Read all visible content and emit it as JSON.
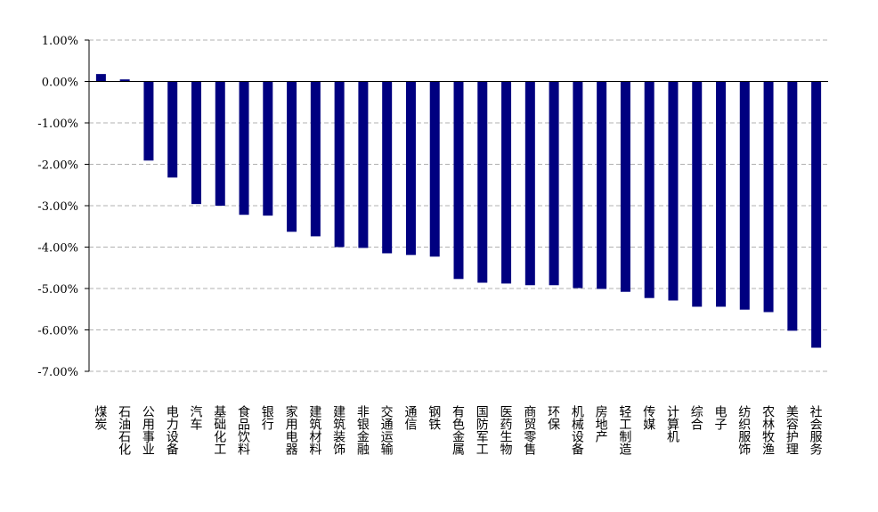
{
  "chart_data": {
    "type": "bar",
    "categories": [
      "煤炭",
      "石油石化",
      "公用事业",
      "电力设备",
      "汽车",
      "基础化工",
      "食品饮料",
      "银行",
      "家用电器",
      "建筑材料",
      "建筑装饰",
      "非银金融",
      "交通运输",
      "通信",
      "钢铁",
      "有色金属",
      "国防军工",
      "医药生物",
      "商贸零售",
      "环保",
      "机械设备",
      "房地产",
      "轻工制造",
      "传媒",
      "计算机",
      "综合",
      "电子",
      "纺织服饰",
      "农林牧渔",
      "美容护理",
      "社会服务"
    ],
    "values": [
      0.18,
      0.05,
      -1.91,
      -2.32,
      -2.96,
      -3.0,
      -3.22,
      -3.24,
      -3.63,
      -3.74,
      -4.0,
      -4.02,
      -4.15,
      -4.19,
      -4.23,
      -4.77,
      -4.86,
      -4.88,
      -4.92,
      -4.92,
      -4.99,
      -5.01,
      -5.08,
      -5.23,
      -5.29,
      -5.44,
      -5.44,
      -5.51,
      -5.57,
      -6.02,
      -6.43
    ],
    "color": "#000080",
    "ylim": [
      -7,
      1
    ],
    "yticks": [
      {
        "value": 1,
        "label": "1.00%"
      },
      {
        "value": 0,
        "label": "0.00%"
      },
      {
        "value": -1,
        "label": "-1.00%"
      },
      {
        "value": -2,
        "label": "-2.00%"
      },
      {
        "value": -3,
        "label": "-3.00%"
      },
      {
        "value": -4,
        "label": "-4.00%"
      },
      {
        "value": -5,
        "label": "-5.00%"
      },
      {
        "value": -6,
        "label": "-6.00%"
      },
      {
        "value": -7,
        "label": "-7.00%"
      }
    ],
    "grid": true
  }
}
